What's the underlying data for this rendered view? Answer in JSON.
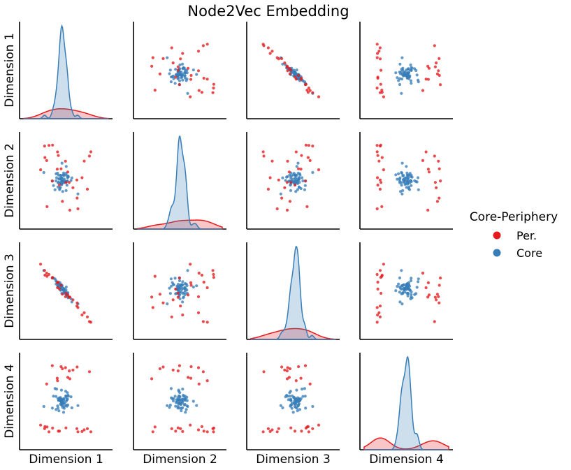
{
  "chart_data": {
    "type": "scatter",
    "subtype": "pairplot",
    "title": "Node2Vec Embedding",
    "variables": [
      "Dimension 1",
      "Dimension 2",
      "Dimension 3",
      "Dimension 4"
    ],
    "diagonal": "kde",
    "ticks_shown": false,
    "grid": false,
    "legend": {
      "title": "Core-Periphery",
      "position": "right",
      "entries": [
        "Per.",
        "Core"
      ]
    },
    "series": [
      {
        "name": "Per.",
        "color": "#e41a1c"
      },
      {
        "name": "Core",
        "color": "#377eb8"
      }
    ],
    "value_note": "No tick labels are shown; values are in arbitrary embedding units read relative to panel extents."
  }
}
